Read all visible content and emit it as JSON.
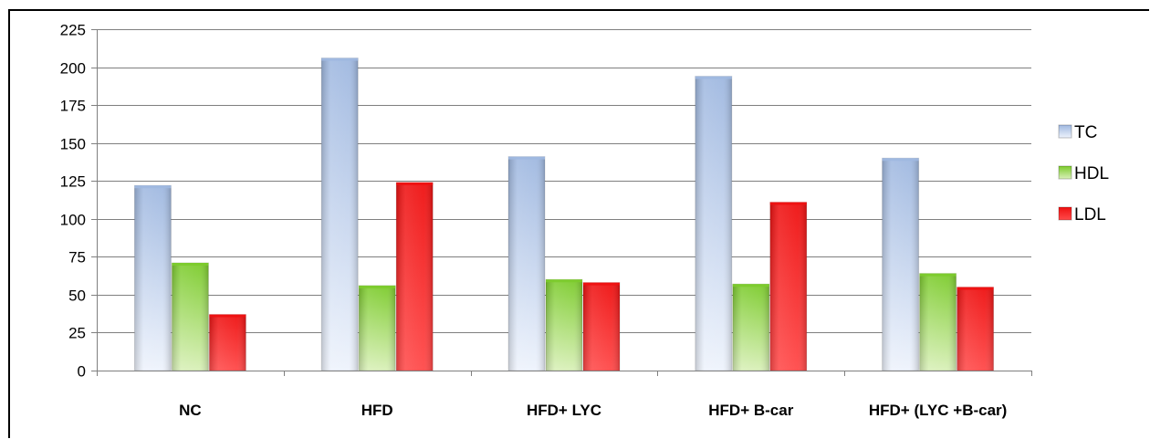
{
  "chart_data": {
    "type": "bar",
    "categories": [
      "NC",
      "HFD",
      "HFD+ LYC",
      "HFD+ B-car",
      "HFD+ (LYC +B-car)"
    ],
    "series": [
      {
        "name": "TC",
        "values": [
          122,
          206,
          141,
          194,
          140
        ],
        "color_top": "#9fb8e0",
        "color_bottom": "#eef3fc"
      },
      {
        "name": "HDL",
        "values": [
          71,
          56,
          60,
          57,
          64
        ],
        "color_top": "#7ccb2c",
        "color_bottom": "#d9f0b9"
      },
      {
        "name": "LDL",
        "values": [
          37,
          124,
          58,
          111,
          55
        ],
        "color_top": "#ee1111",
        "color_bottom": "#ff4a4a"
      }
    ],
    "y_ticks": [
      "0",
      "25",
      "50",
      "75",
      "100",
      "125",
      "150",
      "175",
      "200",
      "225"
    ],
    "ylim": [
      0,
      225
    ],
    "grid": true,
    "legend_position": "right",
    "title": "",
    "xlabel": "",
    "ylabel": ""
  }
}
